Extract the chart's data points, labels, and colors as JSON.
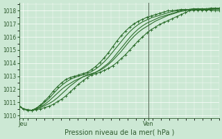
{
  "title": "",
  "xlabel": "Pression niveau de la mer( hPa )",
  "bg_color": "#cce8d4",
  "grid_color": "#ffffff",
  "line_color": "#2d6e2d",
  "ylim": [
    1009.8,
    1018.6
  ],
  "yticks": [
    1010,
    1011,
    1012,
    1013,
    1014,
    1015,
    1016,
    1017,
    1018
  ],
  "xtick_labels": [
    "Jeu",
    "Ven"
  ],
  "xtick_positions": [
    0.02,
    0.645
  ],
  "vline_x": 0.645,
  "num_points": 48,
  "series": [
    {
      "y": [
        1010.7,
        1010.5,
        1010.45,
        1010.4,
        1010.45,
        1010.5,
        1010.6,
        1010.7,
        1010.85,
        1011.05,
        1011.25,
        1011.5,
        1011.8,
        1012.1,
        1012.4,
        1012.65,
        1012.9,
        1013.1,
        1013.2,
        1013.3,
        1013.45,
        1013.6,
        1013.8,
        1014.05,
        1014.35,
        1014.65,
        1015.0,
        1015.35,
        1015.7,
        1016.0,
        1016.3,
        1016.55,
        1016.75,
        1016.95,
        1017.1,
        1017.25,
        1017.4,
        1017.55,
        1017.7,
        1017.85,
        1018.0,
        1018.05,
        1018.05,
        1018.05,
        1018.05,
        1018.05,
        1018.0,
        1018.0
      ],
      "marker": true,
      "linewidth": 0.8
    },
    {
      "y": [
        1010.7,
        1010.5,
        1010.4,
        1010.4,
        1010.5,
        1010.6,
        1010.75,
        1010.9,
        1011.1,
        1011.35,
        1011.65,
        1011.95,
        1012.25,
        1012.5,
        1012.75,
        1012.95,
        1013.1,
        1013.2,
        1013.3,
        1013.45,
        1013.65,
        1013.9,
        1014.2,
        1014.55,
        1014.9,
        1015.3,
        1015.7,
        1016.05,
        1016.35,
        1016.6,
        1016.8,
        1017.0,
        1017.2,
        1017.35,
        1017.5,
        1017.65,
        1017.75,
        1017.85,
        1017.95,
        1018.0,
        1018.05,
        1018.1,
        1018.1,
        1018.1,
        1018.1,
        1018.1,
        1018.1,
        1018.1
      ],
      "marker": false,
      "linewidth": 0.8
    },
    {
      "y": [
        1010.75,
        1010.5,
        1010.4,
        1010.4,
        1010.5,
        1010.65,
        1010.85,
        1011.1,
        1011.4,
        1011.7,
        1012.0,
        1012.25,
        1012.45,
        1012.65,
        1012.8,
        1012.95,
        1013.05,
        1013.15,
        1013.3,
        1013.5,
        1013.75,
        1014.0,
        1014.35,
        1014.75,
        1015.15,
        1015.55,
        1015.95,
        1016.3,
        1016.6,
        1016.85,
        1017.05,
        1017.2,
        1017.35,
        1017.5,
        1017.6,
        1017.7,
        1017.8,
        1017.9,
        1018.0,
        1018.05,
        1018.1,
        1018.1,
        1018.15,
        1018.15,
        1018.15,
        1018.15,
        1018.15,
        1018.15
      ],
      "marker": false,
      "linewidth": 0.8
    },
    {
      "y": [
        1010.75,
        1010.5,
        1010.4,
        1010.4,
        1010.55,
        1010.75,
        1011.0,
        1011.3,
        1011.65,
        1012.0,
        1012.3,
        1012.55,
        1012.75,
        1012.9,
        1013.0,
        1013.1,
        1013.2,
        1013.35,
        1013.55,
        1013.8,
        1014.1,
        1014.45,
        1014.85,
        1015.25,
        1015.65,
        1016.05,
        1016.4,
        1016.7,
        1016.95,
        1017.15,
        1017.3,
        1017.45,
        1017.55,
        1017.65,
        1017.75,
        1017.85,
        1017.95,
        1018.0,
        1018.05,
        1018.1,
        1018.1,
        1018.15,
        1018.15,
        1018.15,
        1018.15,
        1018.15,
        1018.15,
        1018.15
      ],
      "marker": false,
      "linewidth": 0.8
    },
    {
      "y": [
        1010.7,
        1010.5,
        1010.4,
        1010.4,
        1010.55,
        1010.8,
        1011.1,
        1011.45,
        1011.85,
        1012.2,
        1012.5,
        1012.75,
        1012.9,
        1013.0,
        1013.1,
        1013.2,
        1013.3,
        1013.5,
        1013.75,
        1014.05,
        1014.4,
        1014.8,
        1015.25,
        1015.7,
        1016.1,
        1016.45,
        1016.75,
        1017.0,
        1017.2,
        1017.35,
        1017.5,
        1017.6,
        1017.7,
        1017.8,
        1017.9,
        1018.0,
        1018.0,
        1018.05,
        1018.1,
        1018.1,
        1018.1,
        1018.15,
        1018.15,
        1018.15,
        1018.15,
        1018.2,
        1018.2,
        1018.2
      ],
      "marker": true,
      "linewidth": 0.8
    }
  ]
}
